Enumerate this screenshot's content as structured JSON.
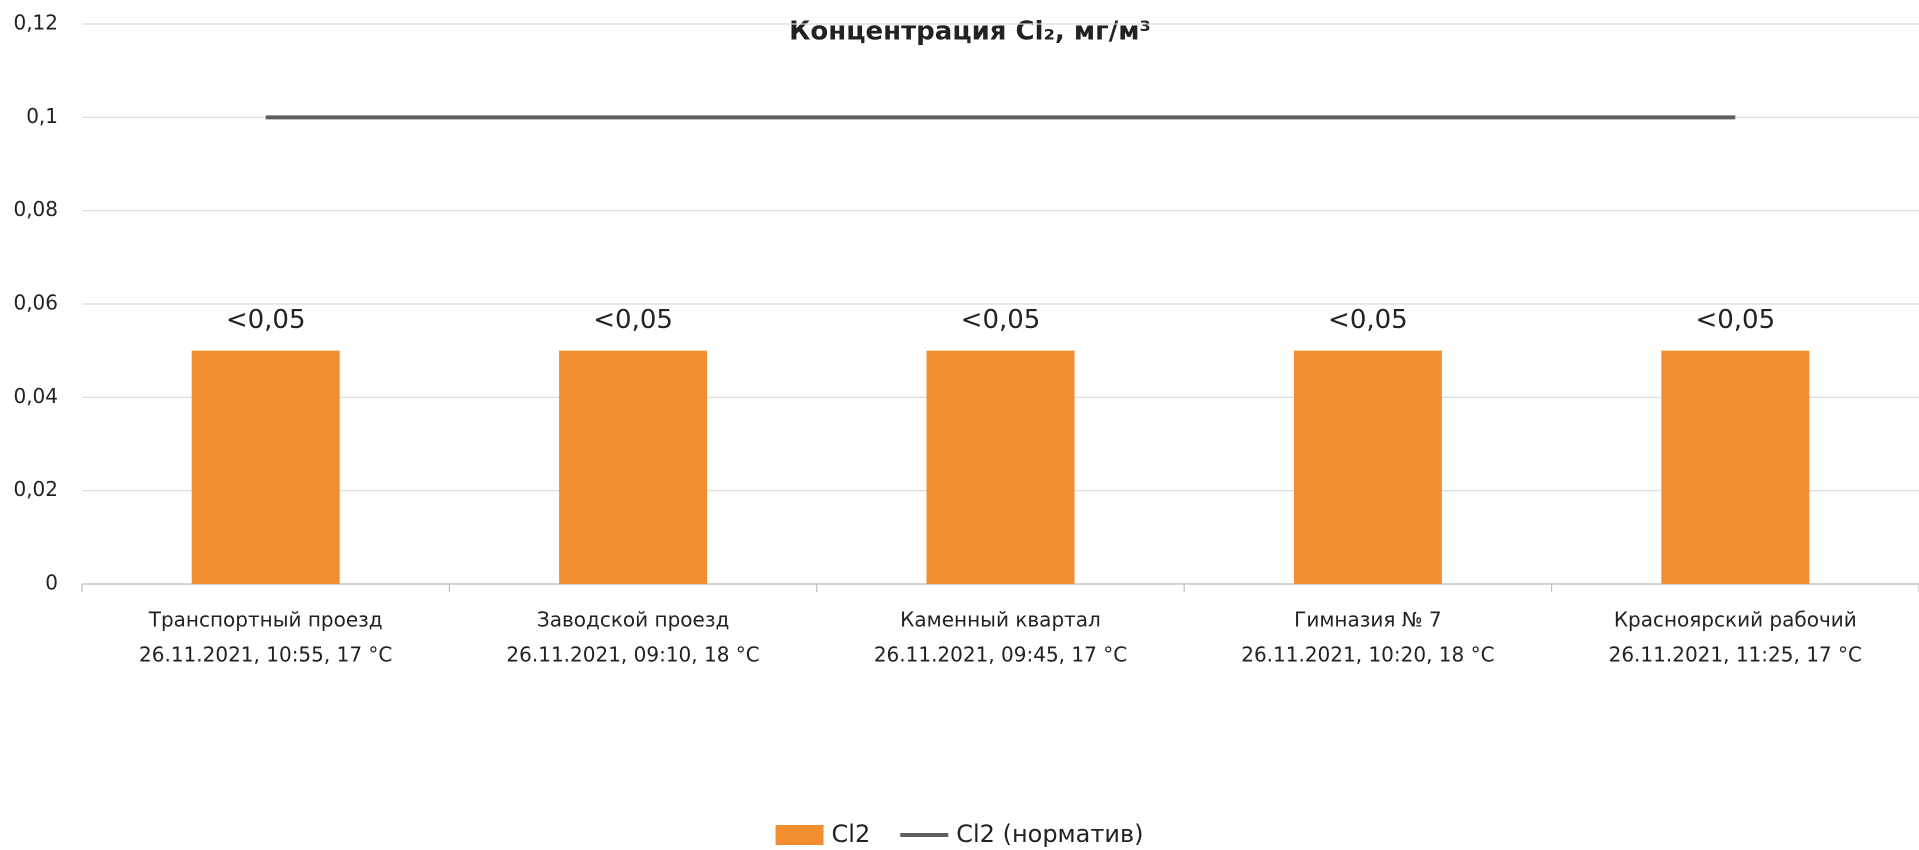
{
  "chart_data": {
    "type": "bar",
    "title": "Концентрация Cl₂, мг/м³",
    "categories": [
      [
        "Транспортный проезд",
        "26.11.2021, 10:55, 17 °C"
      ],
      [
        "Заводской проезд",
        "26.11.2021, 09:10, 18 °C"
      ],
      [
        "Каменный квартал",
        "26.11.2021, 09:45, 17 °C"
      ],
      [
        "Гимназия № 7",
        "26.11.2021, 10:20, 18 °C"
      ],
      [
        "Красноярский рабочий",
        "26.11.2021, 11:25, 17 °C"
      ]
    ],
    "series": [
      {
        "name": "Cl2",
        "color": "#f28e2f",
        "values": [
          0.05,
          0.05,
          0.05,
          0.05,
          0.05
        ],
        "value_labels": [
          "<0,05",
          "<0,05",
          "<0,05",
          "<0,05",
          "<0,05"
        ]
      },
      {
        "name": "Cl2 (норматив)",
        "color": "#5f5f5f",
        "type": "line",
        "values": [
          0.1,
          0.1,
          0.1,
          0.1,
          0.1
        ]
      }
    ],
    "ylim": [
      0,
      0.12
    ],
    "yticks": [
      0,
      {
        "value": 0.02,
        "label": "0,02"
      },
      {
        "value": 0.04,
        "label": "0,04"
      },
      {
        "value": 0.06,
        "label": "0,06"
      },
      {
        "value": 0.08,
        "label": "0,08"
      },
      {
        "value": 0.1,
        "label": "0,1"
      },
      {
        "value": 0.12,
        "label": "0,12"
      }
    ],
    "grid": true,
    "legend": "bottom"
  }
}
